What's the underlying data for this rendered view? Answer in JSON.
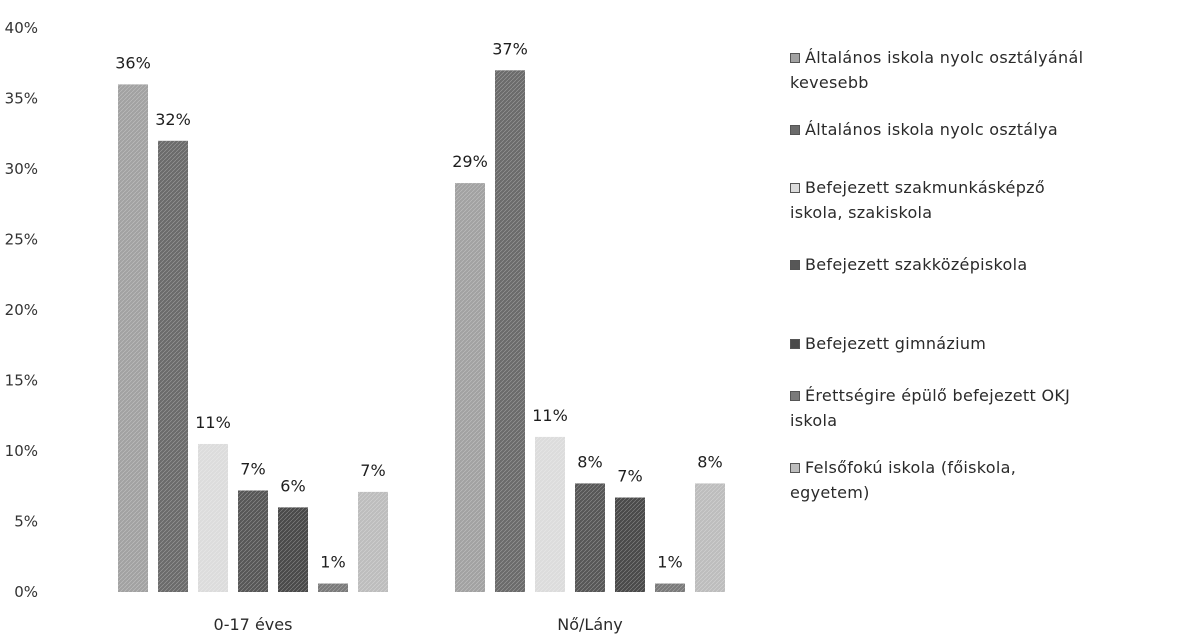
{
  "chart_data": {
    "type": "bar",
    "categories": [
      "0-17 éves",
      "Nő/Lány"
    ],
    "series": [
      {
        "name": "Általános iskola nyolc osztályánál kevesebb",
        "values": [
          36,
          29
        ],
        "labels": [
          "36%",
          "29%"
        ],
        "color": "#a2a2a2"
      },
      {
        "name": "Általános iskola nyolc osztálya",
        "values": [
          32,
          37
        ],
        "labels": [
          "32%",
          "37%"
        ],
        "color": "#6b6b6b"
      },
      {
        "name": "Befejezett szakmunkásképző iskola, szakiskola",
        "values": [
          10.5,
          11
        ],
        "labels": [
          "11%",
          "11%"
        ],
        "color": "#dcdcdc"
      },
      {
        "name": "Befejezett szakközépiskola",
        "values": [
          7.2,
          7.7
        ],
        "labels": [
          "7%",
          "8%"
        ],
        "color": "#575757"
      },
      {
        "name": "Befejezett gimnázium",
        "values": [
          6,
          6.7
        ],
        "labels": [
          "6%",
          "7%"
        ],
        "color": "#4a4a4a"
      },
      {
        "name": "Érettségire épülő befejezett OKJ iskola",
        "values": [
          0.6,
          0.6
        ],
        "labels": [
          "1%",
          "1%"
        ],
        "color": "#7a7a7a"
      },
      {
        "name": "Felsőfokú iskola (főiskola, egyetem)",
        "values": [
          7.1,
          7.7
        ],
        "labels": [
          "7%",
          "8%"
        ],
        "color": "#bdbdbd"
      }
    ],
    "ylim": [
      0,
      40
    ],
    "yticks": [
      "0%",
      "5%",
      "10%",
      "15%",
      "20%",
      "25%",
      "30%",
      "35%",
      "40%"
    ],
    "title": "",
    "xlabel": "",
    "ylabel": "",
    "grid": false,
    "legend_position": "right"
  },
  "legend": {
    "items": [
      {
        "lines": [
          "Általános iskola nyolc osztályánál",
          "kevesebb"
        ]
      },
      {
        "lines": [
          "Általános iskola nyolc osztálya"
        ]
      },
      {
        "lines": [
          "Befejezett szakmunkásképző",
          "iskola, szakiskola"
        ]
      },
      {
        "lines": [
          "Befejezett szakközépiskola"
        ]
      },
      {
        "lines": [
          "Befejezett gimnázium"
        ]
      },
      {
        "lines": [
          "Érettségire épülő befejezett OKJ",
          "iskola"
        ]
      },
      {
        "lines": [
          "Felsőfokú iskola (főiskola,",
          "egyetem)"
        ]
      }
    ]
  }
}
